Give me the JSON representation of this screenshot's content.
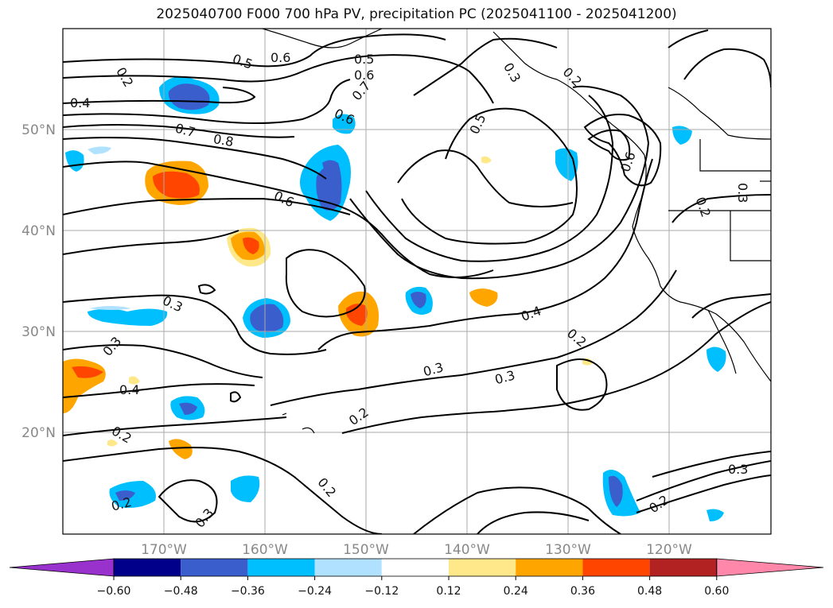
{
  "title": "2025040700 F000 700 hPa PV, precipitation PC (2025041100 - 2025041200)",
  "axes": {
    "lon_labels": [
      "170°W",
      "160°W",
      "150°W",
      "140°W",
      "130°W",
      "120°W"
    ],
    "lat_labels": [
      "50°N",
      "40°N",
      "30°N",
      "20°N"
    ],
    "lon_range": [
      -180,
      -110
    ],
    "lat_range": [
      10,
      60
    ],
    "tick_color": "#888888"
  },
  "contour_labels": [
    "0.2",
    "0.4",
    "0.5",
    "0.6",
    "0.5",
    "0.6",
    "0.7",
    "0.3",
    "0.2",
    "0.7",
    "0.8",
    "0.6",
    "0.5",
    "0.6",
    "0.3",
    "0.3",
    "0.4",
    "0.2",
    "0.3",
    "0.3",
    "0.2",
    "0.2",
    "0.4",
    "0.3",
    "0.2",
    "0.2",
    "0.3",
    "0.2",
    "0.3",
    "0.2",
    "0.6"
  ],
  "colorbar": {
    "ticks": [
      "−0.60",
      "−0.48",
      "−0.36",
      "−0.24",
      "−0.12",
      "0.12",
      "0.24",
      "0.36",
      "0.48",
      "0.60"
    ],
    "colors": [
      "#9932cc",
      "#00008b",
      "#3a5fcd",
      "#00bfff",
      "#b0e2ff",
      "#ffffff",
      "#ffe88a",
      "#ffa500",
      "#ff4500",
      "#b22222",
      "#ff88aa"
    ]
  },
  "precip_anomaly_palette": {
    "neg_strong": "#00008b",
    "neg_mid": "#3a5fcd",
    "neg_light": "#00bfff",
    "neg_weak": "#b0e2ff",
    "pos_weak": "#ffe88a",
    "pos_light": "#ffa500",
    "pos_mid": "#ff4500",
    "pos_strong": "#b22222"
  }
}
